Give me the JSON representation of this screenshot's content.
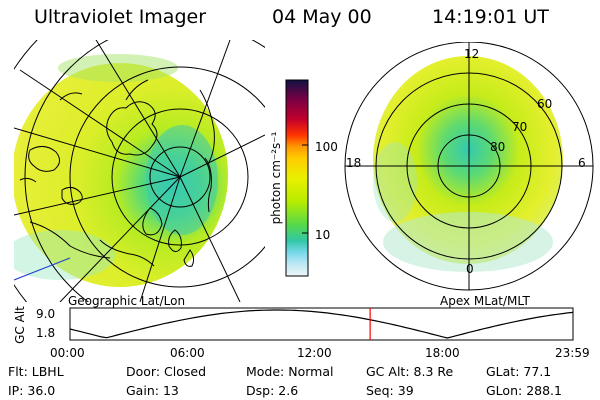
{
  "header": {
    "instrument": "Ultraviolet Imager",
    "date": "04 May 00",
    "time": "14:19:01 UT"
  },
  "left_map": {
    "caption": "Geographic Lat/Lon"
  },
  "right_map": {
    "caption": "Apex MLat/MLT",
    "mlt_labels": {
      "top": "12",
      "left": "18",
      "right": "6",
      "bottom": "0"
    },
    "lat_labels": [
      "60",
      "70",
      "80"
    ]
  },
  "colorbar": {
    "unit_label": "photon cm⁻²s⁻¹",
    "ticks": [
      "100",
      "10"
    ],
    "colors": [
      "#111144",
      "#7a0044",
      "#c2002c",
      "#ff3300",
      "#ff9900",
      "#ffcc00",
      "#e9f000",
      "#b8ec00",
      "#55d94a",
      "#33c7a6",
      "#77d8ea",
      "#bfe8f4",
      "#eef6f8"
    ]
  },
  "timeline": {
    "axis_label": "GC Alt",
    "y_ticks": [
      "9.0",
      "1.8"
    ],
    "x_ticks": [
      "00:00",
      "06:00",
      "12:00",
      "18:00",
      "23:59"
    ],
    "current_time_hours": 14.32,
    "curve_color": "#000000",
    "marker_color": "#ff0000"
  },
  "status": {
    "flt": {
      "key": "Flt:",
      "value": "LBHL"
    },
    "ip": {
      "key": "IP:",
      "value": "36.0"
    },
    "door": {
      "key": "Door:",
      "value": "Closed"
    },
    "gain": {
      "key": "Gain:",
      "value": "13"
    },
    "mode": {
      "key": "Mode:",
      "value": "Normal"
    },
    "dsp": {
      "key": "Dsp:",
      "value": "2.6"
    },
    "gcalt": {
      "key": "GC Alt:",
      "value": "8.3 Re"
    },
    "seq": {
      "key": "Seq:",
      "value": "39"
    },
    "glat": {
      "key": "GLat:",
      "value": "77.1"
    },
    "glon": {
      "key": "GLon:",
      "value": "288.1"
    }
  }
}
